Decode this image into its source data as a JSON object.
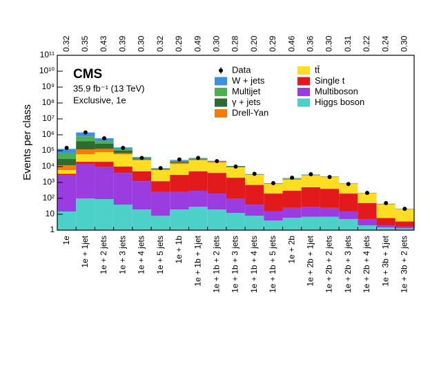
{
  "chart_data": {
    "type": "stacked_bar",
    "log_y": true,
    "ylabel": "Events per class",
    "experiment": "CMS",
    "luminosity": "35.9 fb⁻¹ (13 TeV)",
    "selection": "Exclusive, 1e",
    "categories": [
      "1e",
      "1e + 1jet",
      "1e + 2 jets",
      "1e + 3 jets",
      "1e + 4 jets",
      "1e + 5 jets",
      "1e + 1b",
      "1e + 1b + 1jet",
      "1e + 1b + 2 jets",
      "1e + 1b + 3 jets",
      "1e + 1b + 4 jets",
      "1e + 1b + 5 jets",
      "1e + 2b",
      "1e + 2b + 1jet",
      "1e + 2b + 2 jets",
      "1e + 2b + 3 jets",
      "1e + 2b + 4 jets",
      "1e + 3b + 1jet",
      "1e + 3b + 2 jets"
    ],
    "top_labels": [
      "0.32",
      "0.35",
      "0.43",
      "0.39",
      "0.30",
      "0.32",
      "0.29",
      "0.49",
      "0.30",
      "0.28",
      "0.20",
      "0.29",
      "0.46",
      "0.36",
      "0.30",
      "0.31",
      "0.22",
      "0.24",
      "0.30"
    ],
    "data": {
      "name": "Data",
      "color": "#000000",
      "values": [
        150000,
        1400000,
        600000,
        150000,
        35000,
        8000,
        28000,
        35000,
        22000,
        10000,
        3500,
        900,
        2000,
        3300,
        2200,
        800,
        220,
        50,
        22
      ]
    },
    "series": [
      {
        "name": "W + jets",
        "color": "#3d8fe0",
        "values": [
          60000,
          600000,
          200000,
          30000,
          5000,
          500,
          3000,
          3000,
          1000,
          500,
          100,
          20,
          100,
          100,
          50,
          20,
          5,
          2,
          0.5
        ]
      },
      {
        "name": "Multijet",
        "color": "#4caf50",
        "values": [
          40000,
          400000,
          120000,
          30000,
          3000,
          500,
          3000,
          2000,
          1000,
          500,
          100,
          20,
          100,
          100,
          50,
          20,
          5,
          1,
          0.5
        ]
      },
      {
        "name": "γ + jets",
        "color": "#2e6b2e",
        "values": [
          18000,
          280000,
          150000,
          30000,
          4000,
          500,
          3000,
          2000,
          1000,
          500,
          100,
          30,
          100,
          100,
          50,
          20,
          5,
          1,
          0.5
        ]
      },
      {
        "name": "Drell-Yan",
        "color": "#f57c00",
        "values": [
          6000,
          60000,
          50000,
          10000,
          3000,
          500,
          2000,
          3000,
          2000,
          500,
          100,
          30,
          100,
          100,
          50,
          20,
          5,
          1,
          0.5
        ]
      },
      {
        "name": "tt̄",
        "color": "#ffdd22",
        "values": [
          2500,
          40000,
          60000,
          50000,
          20000,
          4800,
          12000,
          20000,
          14000,
          7000,
          2300,
          600,
          1200,
          2300,
          1800,
          600,
          150,
          35,
          17
        ]
      },
      {
        "name": "Single t",
        "color": "#e31a1c",
        "values": [
          500,
          5000,
          10000,
          6000,
          3800,
          950,
          2750,
          4700,
          3800,
          1900,
          660,
          185,
          275,
          470,
          375,
          185,
          45,
          3.8,
          1.9
        ]
      },
      {
        "name": "Multiboson",
        "color": "#9b3ce0",
        "values": [
          2985,
          14900,
          9910,
          3960,
          1180,
          242,
          230,
          270,
          180,
          88,
          32,
          11,
          19,
          23,
          18,
          10,
          3,
          0.5,
          0.3
        ]
      },
      {
        "name": "Higgs boson",
        "color": "#4dd0c8",
        "values": [
          15,
          100,
          90,
          40,
          20,
          8,
          20,
          30,
          20,
          12,
          8,
          4,
          6,
          7,
          7,
          5,
          2,
          1.5,
          1.3
        ]
      }
    ],
    "ylim": [
      1,
      100000000000
    ],
    "yticks": [
      1,
      10,
      {
        "value": 100,
        "label": "10²"
      },
      {
        "value": 1000,
        "label": "10³"
      },
      {
        "value": 10000,
        "label": "10⁴"
      },
      {
        "value": 100000,
        "label": "10⁵"
      },
      {
        "value": 1000000,
        "label": "10⁶"
      },
      {
        "value": 10000000,
        "label": "10⁷"
      },
      {
        "value": 100000000,
        "label": "10⁸"
      },
      {
        "value": 1000000000,
        "label": "10⁹"
      },
      {
        "value": 10000000000,
        "label": "10¹⁰"
      },
      {
        "value": 100000000000,
        "label": "10¹¹"
      }
    ]
  }
}
